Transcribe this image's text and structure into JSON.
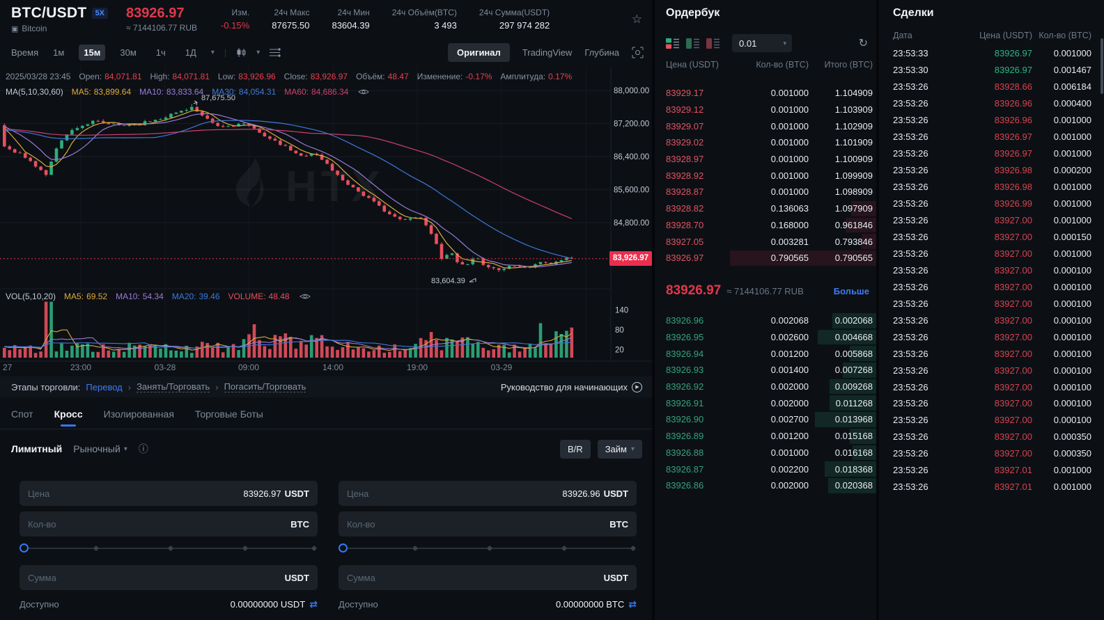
{
  "header": {
    "pair": "BTC/USDT",
    "leverage": "5X",
    "coin_name": "Bitcoin",
    "last_price": "83926.97",
    "fiat_equiv": "≈ 7144106.77 RUB",
    "stats": [
      {
        "label": "Изм.",
        "value": "-0.15%",
        "negative": true
      },
      {
        "label": "24ч Макс",
        "value": "87675.50"
      },
      {
        "label": "24ч Мин",
        "value": "83604.39"
      },
      {
        "label": "24ч Объём(BTC)",
        "value": "3 493"
      },
      {
        "label": "24ч Сумма(USDT)",
        "value": "297 974 282"
      }
    ]
  },
  "toolbar": {
    "time_label": "Время",
    "intervals": [
      "1м",
      "15м",
      "30м",
      "1ч",
      "1Д"
    ],
    "active_interval": "15м",
    "views": [
      "Оригинал",
      "TradingView",
      "Глубина"
    ],
    "active_view": "Оригинал"
  },
  "chart_data": {
    "type": "candlestick",
    "legend": {
      "ohlc": {
        "datetime": "2025/03/28 23:45",
        "items": [
          {
            "label": "Open:",
            "value": "84,071.81"
          },
          {
            "label": "High:",
            "value": "84,071.81"
          },
          {
            "label": "Low:",
            "value": "83,926.96"
          },
          {
            "label": "Close:",
            "value": "83,926.97"
          },
          {
            "label": "Объём:",
            "value": "48.47"
          },
          {
            "label": "Изменение:",
            "value": "-0.17%"
          },
          {
            "label": "Амплитуда:",
            "value": "0.17%"
          }
        ]
      },
      "ma": {
        "prefix": "MA(5,10,30,60)",
        "items": [
          {
            "label": "MA5:",
            "value": "83,899.64",
            "color": "#dfaa3a"
          },
          {
            "label": "MA10:",
            "value": "83,833.64",
            "color": "#9b7bd8"
          },
          {
            "label": "MA30:",
            "value": "84,054.31",
            "color": "#3e78d9"
          },
          {
            "label": "MA60:",
            "value": "84,686.34",
            "color": "#cf3f6e"
          }
        ]
      },
      "vol": {
        "prefix": "VOL(5,10,20)",
        "items": [
          {
            "label": "MA5:",
            "value": "69.52",
            "color": "#dfaa3a"
          },
          {
            "label": "MA10:",
            "value": "54.34",
            "color": "#9b7bd8"
          },
          {
            "label": "MA20:",
            "value": "39.46",
            "color": "#3e78d9"
          },
          {
            "label": "VOLUME:",
            "value": "48.48",
            "color": "#e8505e"
          }
        ]
      }
    },
    "price_axis_labels": [
      "88,000.00",
      "87,200.00",
      "86,400.00",
      "85,600.00",
      "84,800.00"
    ],
    "price_axis_values": [
      88000,
      87200,
      86400,
      85600,
      84800
    ],
    "vol_axis_labels": [
      "140",
      "80",
      "20"
    ],
    "vol_axis_values": [
      140,
      80,
      20
    ],
    "x_axis_labels": [
      "27",
      "23:00",
      "03-28",
      "09:00",
      "14:00",
      "19:00",
      "03-29"
    ],
    "current_price": 83926.97,
    "current_price_label": "83,926.97",
    "high_annotation": "87,675.50",
    "low_annotation": "83,604.39",
    "watermark": "HTX",
    "candles": {
      "count": 110,
      "keypoints": [
        [
          0.0,
          86650
        ],
        [
          0.03,
          86450
        ],
        [
          0.075,
          85950
        ],
        [
          0.095,
          86750
        ],
        [
          0.125,
          87100
        ],
        [
          0.16,
          87250
        ],
        [
          0.2,
          87150
        ],
        [
          0.24,
          87200
        ],
        [
          0.28,
          87350
        ],
        [
          0.33,
          87600
        ],
        [
          0.35,
          87350
        ],
        [
          0.38,
          87100
        ],
        [
          0.42,
          87200
        ],
        [
          0.45,
          87000
        ],
        [
          0.47,
          86800
        ],
        [
          0.5,
          86600
        ],
        [
          0.52,
          86400
        ],
        [
          0.545,
          86500
        ],
        [
          0.57,
          86200
        ],
        [
          0.59,
          85900
        ],
        [
          0.61,
          85700
        ],
        [
          0.63,
          85500
        ],
        [
          0.65,
          85300
        ],
        [
          0.67,
          85100
        ],
        [
          0.69,
          84900
        ],
        [
          0.71,
          84850
        ],
        [
          0.73,
          85000
        ],
        [
          0.755,
          84500
        ],
        [
          0.77,
          83950
        ],
        [
          0.785,
          84100
        ],
        [
          0.8,
          83800
        ],
        [
          0.815,
          83750
        ],
        [
          0.83,
          83950
        ],
        [
          0.845,
          83800
        ],
        [
          0.86,
          83700
        ],
        [
          0.875,
          83650
        ],
        [
          0.89,
          83750
        ],
        [
          0.905,
          83800
        ],
        [
          0.92,
          83700
        ],
        [
          0.935,
          83800
        ],
        [
          0.95,
          83850
        ],
        [
          0.965,
          83800
        ],
        [
          0.98,
          83900
        ],
        [
          1.0,
          83927
        ]
      ],
      "high_point": {
        "index_frac": 0.33,
        "price": 87675.5
      },
      "low_point": {
        "index_frac": 0.875,
        "price": 83604.39
      },
      "last_close": 83926.97
    },
    "colors": {
      "up": "#2ead7c",
      "down": "#e8505e",
      "ma5": "#dfaa3a",
      "ma10": "#9b7bd8",
      "ma30": "#3e78d9",
      "ma60": "#cf3f6e"
    }
  },
  "stages": {
    "prefix": "Этапы торговли:",
    "links": [
      "Перевод",
      "Занять/Торговать",
      "Погасить/Торговать"
    ],
    "guide": "Руководство для начинающих"
  },
  "trade_tabs": {
    "items": [
      "Спот",
      "Кросс",
      "Изолированная",
      "Торговые Боты"
    ],
    "active": "Кросс"
  },
  "order_form": {
    "type_limit": "Лимитный",
    "type_market": "Рыночный",
    "br_button": "B/R",
    "loan_button": "Займ",
    "buy": {
      "price_label": "Цена",
      "price_value": "83926.97",
      "price_unit": "USDT",
      "amount_label": "Кол-во",
      "amount_unit": "BTC",
      "total_label": "Сумма",
      "total_unit": "USDT",
      "available_label": "Доступно",
      "available_value": "0.00000000 USDT"
    },
    "sell": {
      "price_label": "Цена",
      "price_value": "83926.96",
      "price_unit": "USDT",
      "amount_label": "Кол-во",
      "amount_unit": "BTC",
      "total_label": "Сумма",
      "total_unit": "USDT",
      "available_label": "Доступно",
      "available_value": "0.00000000 BTC"
    }
  },
  "orderbook": {
    "title": "Ордербук",
    "precision": "0.01",
    "columns": [
      "Цена (USDT)",
      "Кол-во (BTC)",
      "Итого (BTC)"
    ],
    "asks": [
      {
        "price": "83929.17",
        "qty": "0.001000",
        "total": "1.104909",
        "depth": 0
      },
      {
        "price": "83929.12",
        "qty": "0.001000",
        "total": "1.103909",
        "depth": 0
      },
      {
        "price": "83929.07",
        "qty": "0.001000",
        "total": "1.102909",
        "depth": 0
      },
      {
        "price": "83929.02",
        "qty": "0.001000",
        "total": "1.101909",
        "depth": 0
      },
      {
        "price": "83928.97",
        "qty": "0.001000",
        "total": "1.100909",
        "depth": 0
      },
      {
        "price": "83928.92",
        "qty": "0.001000",
        "total": "1.099909",
        "depth": 0
      },
      {
        "price": "83928.87",
        "qty": "0.001000",
        "total": "1.098909",
        "depth": 0
      },
      {
        "price": "83928.82",
        "qty": "0.136063",
        "total": "1.097909",
        "depth": 17
      },
      {
        "price": "83928.70",
        "qty": "0.168000",
        "total": "0.961846",
        "depth": 21
      },
      {
        "price": "83927.05",
        "qty": "0.003281",
        "total": "0.793846",
        "depth": 10
      },
      {
        "price": "83926.97",
        "qty": "0.790565",
        "total": "0.790565",
        "depth": 100
      }
    ],
    "mid": {
      "price": "83926.97",
      "fiat": "≈ 7144106.77 RUB",
      "more": "Больше"
    },
    "bids": [
      {
        "price": "83926.96",
        "qty": "0.002068",
        "total": "0.002068",
        "depth": 30
      },
      {
        "price": "83926.95",
        "qty": "0.002600",
        "total": "0.004668",
        "depth": 40
      },
      {
        "price": "83926.94",
        "qty": "0.001200",
        "total": "0.005868",
        "depth": 18
      },
      {
        "price": "83926.93",
        "qty": "0.001400",
        "total": "0.007268",
        "depth": 23
      },
      {
        "price": "83926.92",
        "qty": "0.002000",
        "total": "0.009268",
        "depth": 32
      },
      {
        "price": "83926.91",
        "qty": "0.002000",
        "total": "0.011268",
        "depth": 32
      },
      {
        "price": "83926.90",
        "qty": "0.002700",
        "total": "0.013968",
        "depth": 42
      },
      {
        "price": "83926.89",
        "qty": "0.001200",
        "total": "0.015168",
        "depth": 18
      },
      {
        "price": "83926.88",
        "qty": "0.001000",
        "total": "0.016168",
        "depth": 16
      },
      {
        "price": "83926.87",
        "qty": "0.002200",
        "total": "0.018368",
        "depth": 35
      },
      {
        "price": "83926.86",
        "qty": "0.002000",
        "total": "0.020368",
        "depth": 33
      }
    ]
  },
  "trades": {
    "title": "Сделки",
    "columns": [
      "Дата",
      "Цена (USDT)",
      "Кол-во (BTC)"
    ],
    "rows": [
      {
        "time": "23:53:33",
        "price": "83926.97",
        "qty": "0.001000",
        "side": "up"
      },
      {
        "time": "23:53:30",
        "price": "83926.97",
        "qty": "0.001467",
        "side": "up"
      },
      {
        "time": "23:53:26",
        "price": "83928.66",
        "qty": "0.006184",
        "side": "down"
      },
      {
        "time": "23:53:26",
        "price": "83926.96",
        "qty": "0.000400",
        "side": "down"
      },
      {
        "time": "23:53:26",
        "price": "83926.96",
        "qty": "0.001000",
        "side": "down"
      },
      {
        "time": "23:53:26",
        "price": "83926.97",
        "qty": "0.001000",
        "side": "down"
      },
      {
        "time": "23:53:26",
        "price": "83926.97",
        "qty": "0.001000",
        "side": "down"
      },
      {
        "time": "23:53:26",
        "price": "83926.98",
        "qty": "0.000200",
        "side": "down"
      },
      {
        "time": "23:53:26",
        "price": "83926.98",
        "qty": "0.001000",
        "side": "down"
      },
      {
        "time": "23:53:26",
        "price": "83926.99",
        "qty": "0.001000",
        "side": "down"
      },
      {
        "time": "23:53:26",
        "price": "83927.00",
        "qty": "0.001000",
        "side": "down"
      },
      {
        "time": "23:53:26",
        "price": "83927.00",
        "qty": "0.000150",
        "side": "down"
      },
      {
        "time": "23:53:26",
        "price": "83927.00",
        "qty": "0.001000",
        "side": "down"
      },
      {
        "time": "23:53:26",
        "price": "83927.00",
        "qty": "0.000100",
        "side": "down"
      },
      {
        "time": "23:53:26",
        "price": "83927.00",
        "qty": "0.000100",
        "side": "down"
      },
      {
        "time": "23:53:26",
        "price": "83927.00",
        "qty": "0.000100",
        "side": "down"
      },
      {
        "time": "23:53:26",
        "price": "83927.00",
        "qty": "0.000100",
        "side": "down"
      },
      {
        "time": "23:53:26",
        "price": "83927.00",
        "qty": "0.000100",
        "side": "down"
      },
      {
        "time": "23:53:26",
        "price": "83927.00",
        "qty": "0.000100",
        "side": "down"
      },
      {
        "time": "23:53:26",
        "price": "83927.00",
        "qty": "0.000100",
        "side": "down"
      },
      {
        "time": "23:53:26",
        "price": "83927.00",
        "qty": "0.000100",
        "side": "down"
      },
      {
        "time": "23:53:26",
        "price": "83927.00",
        "qty": "0.000100",
        "side": "down"
      },
      {
        "time": "23:53:26",
        "price": "83927.00",
        "qty": "0.000100",
        "side": "down"
      },
      {
        "time": "23:53:26",
        "price": "83927.00",
        "qty": "0.000350",
        "side": "down"
      },
      {
        "time": "23:53:26",
        "price": "83927.00",
        "qty": "0.000350",
        "side": "down"
      },
      {
        "time": "23:53:26",
        "price": "83927.01",
        "qty": "0.001000",
        "side": "down"
      },
      {
        "time": "23:53:26",
        "price": "83927.01",
        "qty": "0.001000",
        "side": "down"
      }
    ]
  }
}
